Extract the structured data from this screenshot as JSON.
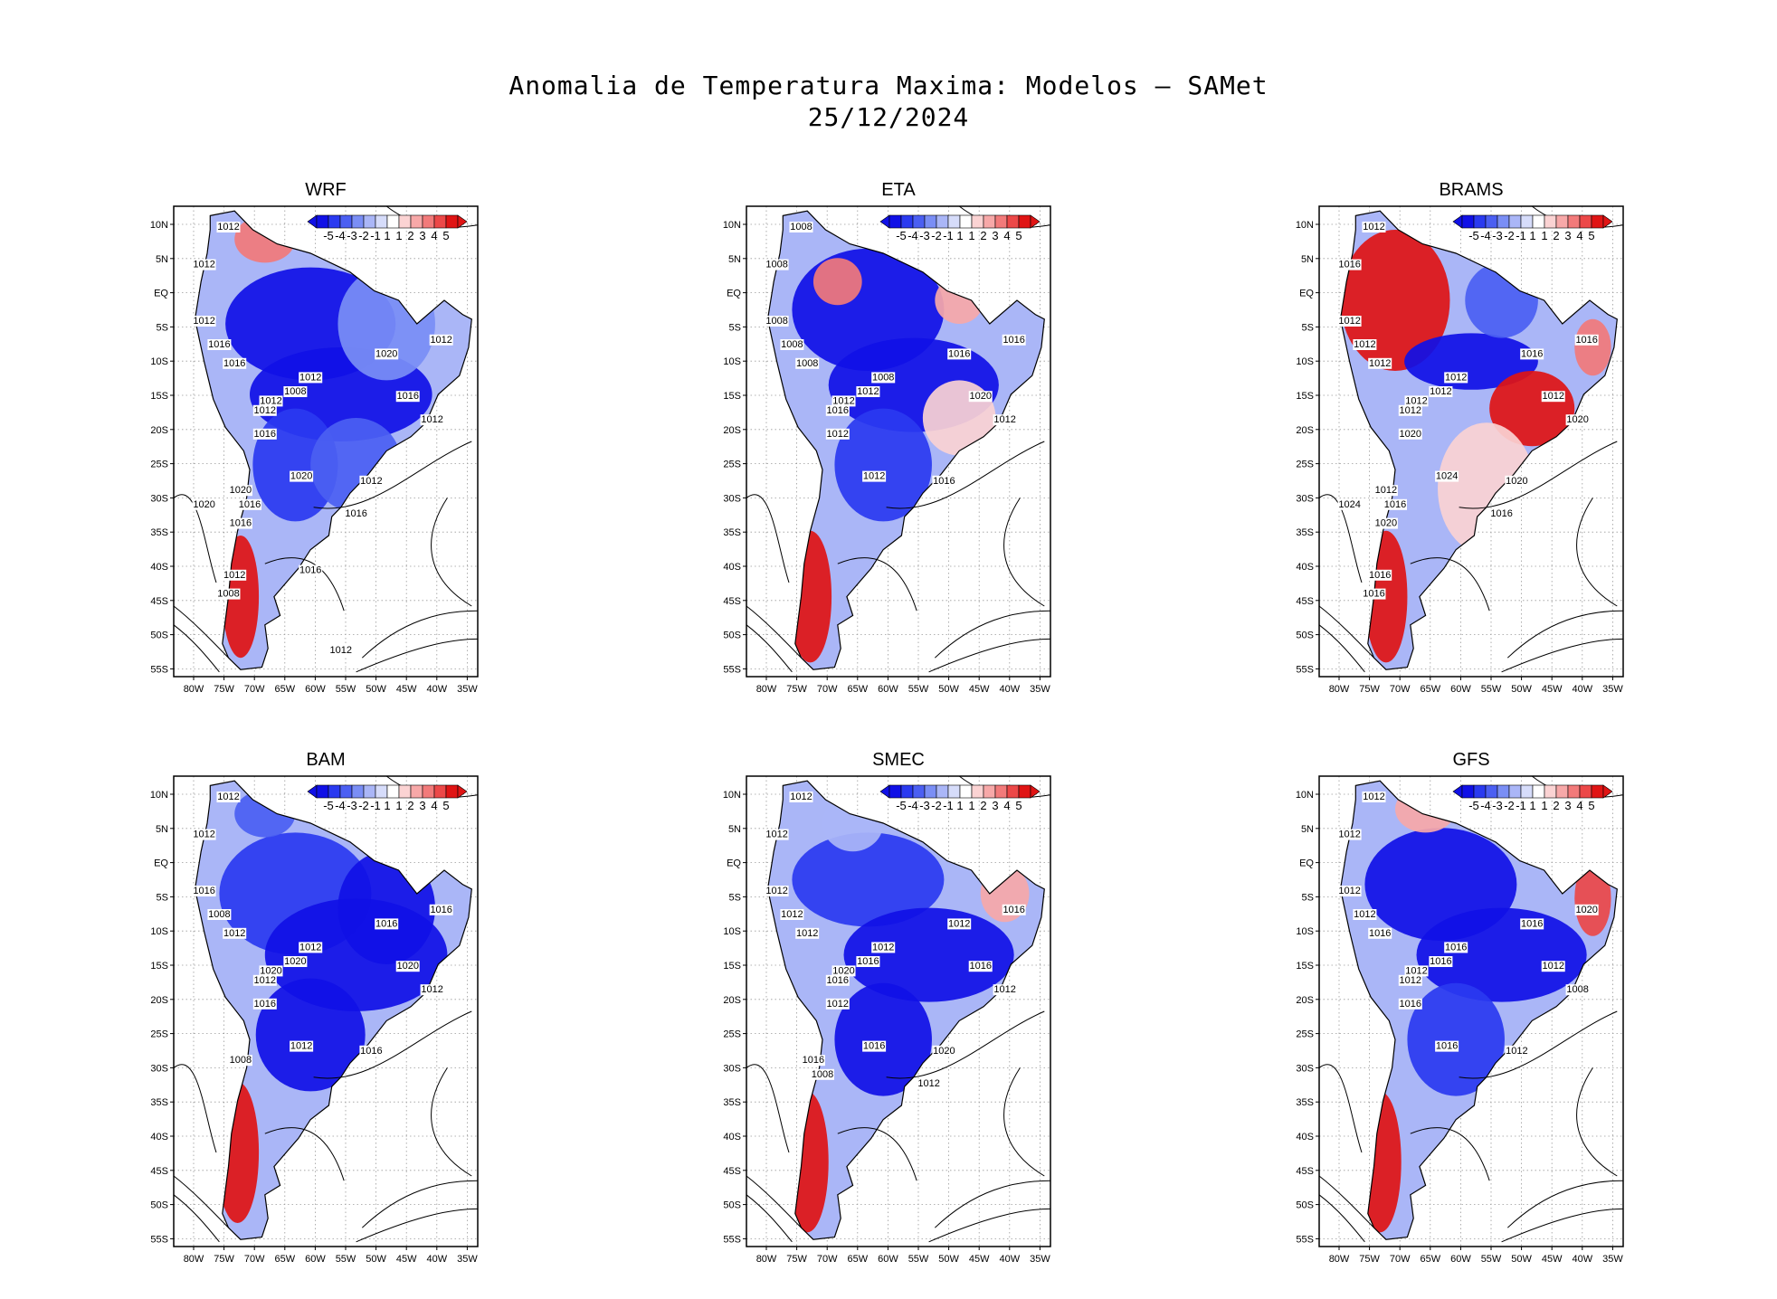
{
  "figure": {
    "title_line1": "Anomalia de Temperatura Maxima: Modelos — SAMet",
    "title_line2": "25/12/2024"
  },
  "lat_labels": [
    "10N",
    "5N",
    "EQ",
    "5S",
    "10S",
    "15S",
    "20S",
    "25S",
    "30S",
    "35S",
    "40S",
    "45S",
    "50S",
    "55S"
  ],
  "lon_labels": [
    "80W",
    "75W",
    "70W",
    "65W",
    "60W",
    "55W",
    "50W",
    "45W",
    "40W",
    "35W"
  ],
  "colorbar": {
    "labels": [
      "-5",
      "-4",
      "-3",
      "-2",
      "-1",
      "1",
      "1",
      "2",
      "3",
      "4",
      "5"
    ],
    "colors": [
      "#1010e6",
      "#2a3af0",
      "#4b5ff2",
      "#7a8ef5",
      "#aab6f7",
      "#d6dcfa",
      "#ffffff",
      "#fbd3d3",
      "#f7a8a8",
      "#f27a7a",
      "#ec4848",
      "#e01414"
    ]
  },
  "panels": [
    {
      "name": "WRF",
      "isobars": [
        "1012",
        "1012",
        "1012",
        "1016",
        "1016",
        "1012",
        "1008",
        "1012",
        "1012",
        "1016",
        "1012",
        "1020",
        "1016",
        "1020",
        "1012",
        "1012",
        "1020",
        "1016",
        "1016",
        "1020",
        "1016",
        "1012",
        "1008",
        "1016",
        "1012"
      ]
    },
    {
      "name": "ETA",
      "isobars": [
        "1008",
        "1008",
        "1008",
        "1008",
        "1008",
        "1008",
        "1012",
        "1012",
        "1016",
        "1012",
        "1016",
        "1016",
        "1020",
        "1012",
        "1016",
        "1012"
      ]
    },
    {
      "name": "BRAMS",
      "isobars": [
        "1012",
        "1016",
        "1012",
        "1012",
        "1012",
        "1012",
        "1012",
        "1012",
        "1012",
        "1020",
        "1016",
        "1016",
        "1012",
        "1024",
        "1020",
        "1020",
        "1012",
        "1016",
        "1016",
        "1024",
        "1020",
        "1016",
        "1016"
      ]
    },
    {
      "name": "BAM",
      "isobars": [
        "1012",
        "1012",
        "1016",
        "1008",
        "1012",
        "1012",
        "1020",
        "1020",
        "1012",
        "1016",
        "1016",
        "1016",
        "1020",
        "1012",
        "1016",
        "1012",
        "1008"
      ]
    },
    {
      "name": "SMEC",
      "isobars": [
        "1012",
        "1012",
        "1012",
        "1012",
        "1012",
        "1012",
        "1016",
        "1020",
        "1016",
        "1012",
        "1016",
        "1012",
        "1016",
        "1016",
        "1020",
        "1012",
        "1016",
        "1012",
        "1008"
      ]
    },
    {
      "name": "GFS",
      "isobars": [
        "1012",
        "1012",
        "1012",
        "1012",
        "1016",
        "1016",
        "1016",
        "1012",
        "1012",
        "1016",
        "1020",
        "1016",
        "1012",
        "1016",
        "1012",
        "1008"
      ]
    }
  ],
  "colors": {
    "cold": "#1a2ee8",
    "warm": "#e01414"
  }
}
